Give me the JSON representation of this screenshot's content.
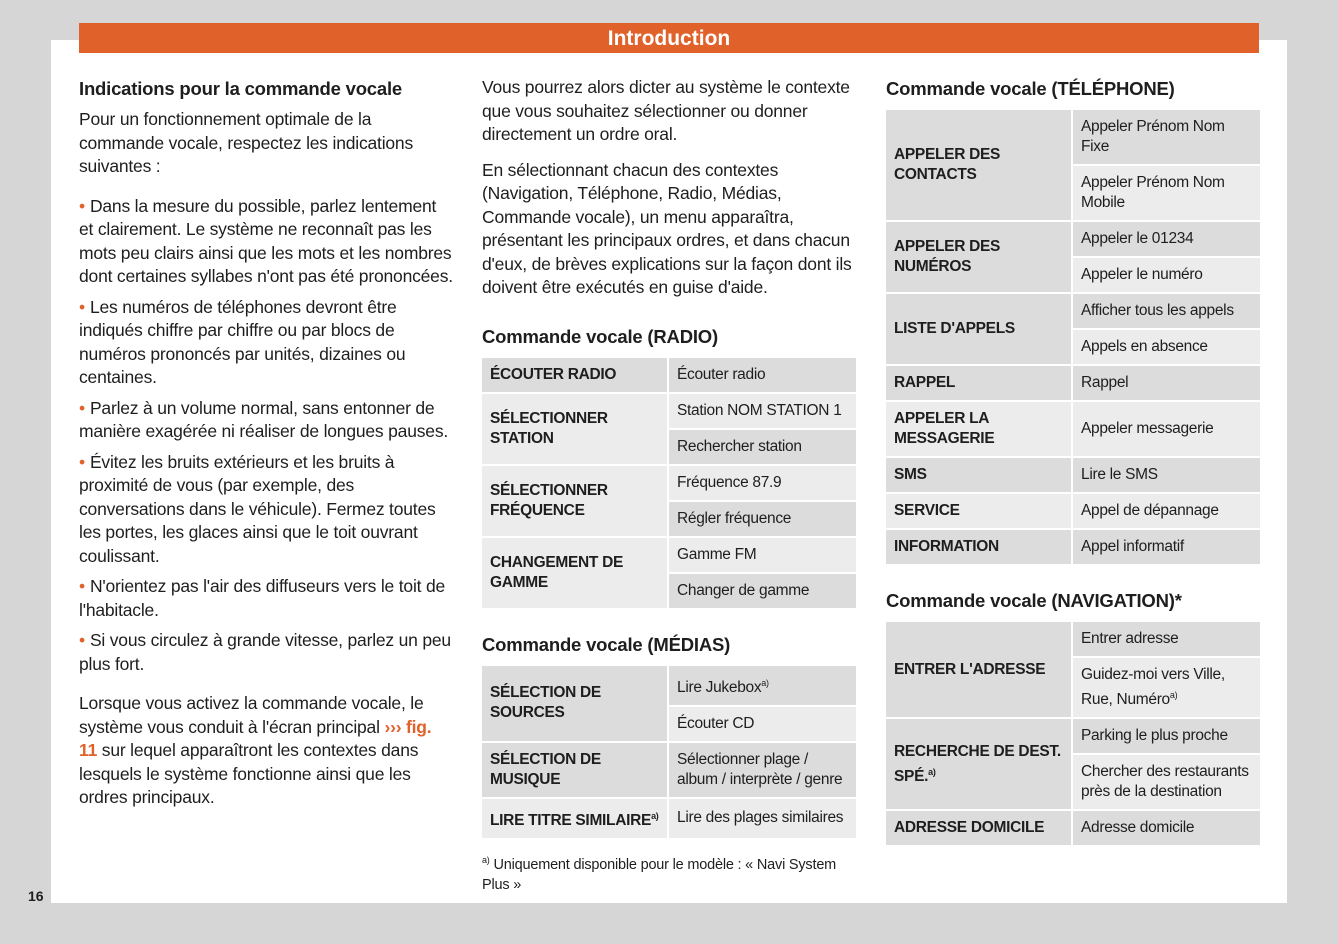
{
  "header": {
    "title": "Introduction"
  },
  "page_number": "16",
  "col1": {
    "heading": "Indications pour la commande vocale",
    "intro": "Pour un fonctionnement optimale de la commande vocale, respectez les indications suivantes :",
    "bullets": [
      "Dans la mesure du possible, parlez lentement et clairement. Le système ne reconnaît pas les mots peu clairs ainsi que les mots et les nombres dont certaines syllabes n'ont pas été prononcées.",
      "Les numéros de téléphones devront être indiqués chiffre par chiffre ou par blocs de numéros prononcés par unités, dizaines ou centaines.",
      "Parlez à un volume normal, sans entonner de manière exagérée ni réaliser de longues pauses.",
      "Évitez les bruits extérieurs et les bruits à proximité de vous (par exemple, des conversations dans le véhicule). Fermez toutes les portes, les glaces ainsi que le toit ouvrant coulissant.",
      "N'orientez pas l'air des diffuseurs vers le toit de l'habitacle.",
      "Si vous circulez à grande vitesse, parlez un peu plus fort."
    ],
    "outro_a": "Lorsque vous activez la commande vocale, le système vous conduit à l'écran principal ",
    "outro_ref": "››› fig. 11",
    "outro_b": " sur lequel apparaîtront les contextes dans lesquels le système fonctionne ainsi que les ordres principaux."
  },
  "col2": {
    "p1": "Vous pourrez alors dicter au système le contexte que vous souhaitez sélectionner ou donner directement un ordre oral.",
    "p2": "En sélectionnant chacun des contextes (Navigation, Téléphone, Radio, Médias, Commande vocale), un menu apparaîtra, présentant les principaux ordres, et dans chacun d'eux, de brèves explications sur la façon dont ils doivent être exécutés en guise d'aide.",
    "footnote_mark": "a)",
    "footnote": "Uniquement disponible pour le modèle : « Navi System Plus »"
  },
  "tables": [
    {
      "col": "c2",
      "title": "Commande vocale (RADIO)",
      "groups": [
        {
          "label": "ÉCOUTER RADIO",
          "items": [
            {
              "t": "Écouter radio"
            }
          ]
        },
        {
          "label": "SÉLECTIONNER STATION",
          "items": [
            {
              "t": "Station NOM STATION 1"
            },
            {
              "t": "Rechercher station"
            }
          ]
        },
        {
          "label": "SÉLECTIONNER FRÉQUENCE",
          "items": [
            {
              "t": "Fréquence 87.9"
            },
            {
              "t": "Régler fréquence"
            }
          ]
        },
        {
          "label": "CHANGEMENT DE GAMME",
          "items": [
            {
              "t": "Gamme FM"
            },
            {
              "t": "Changer de gamme"
            }
          ]
        }
      ]
    },
    {
      "col": "c2",
      "title": "Commande vocale (MÉDIAS)",
      "groups": [
        {
          "label": "SÉLECTION DE SOURCES",
          "items": [
            {
              "t": "Lire Jukebox",
              "sup": "a)"
            },
            {
              "t": "Écouter CD"
            }
          ]
        },
        {
          "label": "SÉLECTION DE MUSIQUE",
          "items": [
            {
              "t": "Sélectionner plage / album / interprète / genre"
            }
          ]
        },
        {
          "label": "LIRE TITRE SIMILAIRE",
          "sup": "a)",
          "items": [
            {
              "t": "Lire des plages similaires"
            }
          ]
        }
      ]
    },
    {
      "col": "c3",
      "title": "Commande vocale (TÉLÉPHONE)",
      "groups": [
        {
          "label": "APPELER DES CONTACTS",
          "items": [
            {
              "t": "Appeler Prénom Nom Fixe"
            },
            {
              "t": "Appeler Prénom Nom Mobile"
            }
          ]
        },
        {
          "label": "APPELER DES NUMÉROS",
          "items": [
            {
              "t": "Appeler le 01234"
            },
            {
              "t": "Appeler le numéro"
            }
          ]
        },
        {
          "label": "LISTE D'APPELS",
          "items": [
            {
              "t": "Afficher tous les appels"
            },
            {
              "t": "Appels en absence"
            }
          ]
        },
        {
          "label": "RAPPEL",
          "items": [
            {
              "t": "Rappel"
            }
          ]
        },
        {
          "label": "APPELER LA MESSAGERIE",
          "items": [
            {
              "t": "Appeler messagerie"
            }
          ]
        },
        {
          "label": "SMS",
          "items": [
            {
              "t": "Lire le SMS"
            }
          ]
        },
        {
          "label": "SERVICE",
          "items": [
            {
              "t": "Appel de dépannage"
            }
          ]
        },
        {
          "label": "INFORMATION",
          "items": [
            {
              "t": "Appel informatif"
            }
          ]
        }
      ]
    },
    {
      "col": "c3",
      "title": "Commande vocale (NAVIGATION)*",
      "groups": [
        {
          "label": "ENTRER L'ADRESSE",
          "items": [
            {
              "t": "Entrer adresse"
            },
            {
              "t": "Guidez-moi vers Ville, Rue, Numéro",
              "sup": "a)"
            }
          ]
        },
        {
          "label": "RECHERCHE DE DEST. SPÉ.",
          "sup": "a)",
          "items": [
            {
              "t": "Parking le plus proche"
            },
            {
              "t": "Chercher des restaurants près de la destination"
            }
          ]
        },
        {
          "label": "ADRESSE DOMICILE",
          "items": [
            {
              "t": "Adresse domicile"
            }
          ]
        }
      ]
    }
  ]
}
